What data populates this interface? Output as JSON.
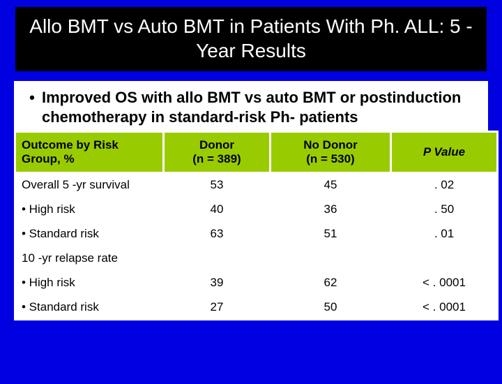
{
  "title": "Allo BMT vs Auto BMT in Patients With Ph. ALL: 5 -Year Results",
  "bullet": "Improved OS with allo BMT vs auto BMT or postinduction chemotherapy in standard-risk Ph- patients",
  "table": {
    "header_bg": "#99cc00",
    "columns": [
      {
        "label_line1": "Outcome by Risk",
        "label_line2": "Group, %",
        "align": "left"
      },
      {
        "label_line1": "Donor",
        "label_line2": "(n = 389)",
        "align": "center"
      },
      {
        "label_line1": "No Donor",
        "label_line2": "(n = 530)",
        "align": "center"
      },
      {
        "label_line1": "P Value",
        "label_line2": "",
        "align": "center",
        "italic_first_char": true
      }
    ],
    "rows": [
      {
        "type": "data",
        "label": "Overall 5 -yr survival",
        "donor": "53",
        "nodonor": "45",
        "p": ". 02"
      },
      {
        "type": "data",
        "label": "• High risk",
        "donor": "40",
        "nodonor": "36",
        "p": ". 50"
      },
      {
        "type": "data",
        "label": "• Standard risk",
        "donor": "63",
        "nodonor": "51",
        "p": ". 01"
      },
      {
        "type": "section",
        "label": "10 -yr relapse rate"
      },
      {
        "type": "data",
        "label": "• High risk",
        "donor": "39",
        "nodonor": "62",
        "p": "< . 0001"
      },
      {
        "type": "data",
        "label": "• Standard risk",
        "donor": "27",
        "nodonor": "50",
        "p": "< . 0001"
      }
    ]
  }
}
